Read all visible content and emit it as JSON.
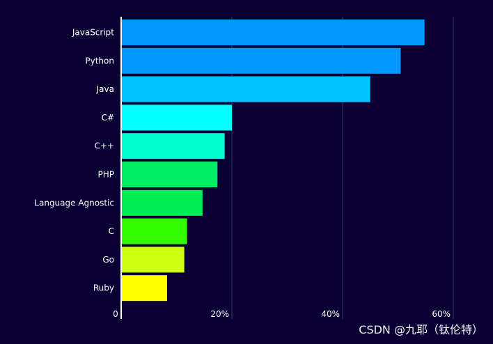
{
  "chart_data": {
    "type": "bar",
    "orientation": "horizontal",
    "categories": [
      "JavaScript",
      "Python",
      "Java",
      "C#",
      "C++",
      "PHP",
      "Language Agnostic",
      "C",
      "Go",
      "Ruby"
    ],
    "values": [
      54.8,
      50.5,
      45.0,
      20.0,
      18.7,
      17.4,
      14.7,
      11.9,
      11.4,
      8.3
    ],
    "colors": [
      "#0099ff",
      "#0099ff",
      "#00c4ff",
      "#00ffff",
      "#00ffcc",
      "#00ee66",
      "#00ee55",
      "#33ff00",
      "#ccff11",
      "#ffff00"
    ],
    "x_ticks": [
      "0",
      "20%",
      "40%",
      "60%"
    ],
    "x_tick_values": [
      0,
      20,
      40,
      60
    ],
    "xlim": [
      0,
      68
    ],
    "grid": true
  },
  "watermark": "CSDN @九耶（钛伦特）"
}
